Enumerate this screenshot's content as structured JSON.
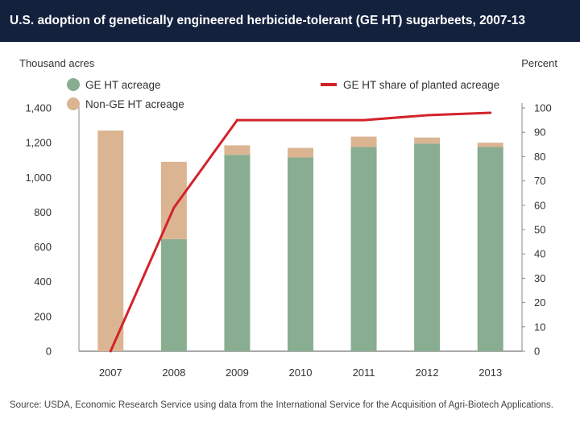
{
  "header": {
    "title": "U.S. adoption of genetically engineered herbicide-tolerant (GE HT) sugarbeets, 2007-13"
  },
  "footer": {
    "source": "Source: USDA, Economic Research Service using data from the International Service for the Acquisition of Agri-Biotech Applications."
  },
  "chart_data": {
    "type": "bar",
    "title": "U.S. adoption of genetically engineered herbicide-tolerant (GE HT) sugarbeets, 2007-13",
    "ylabel": "Thousand acres",
    "y2label": "Percent",
    "categories": [
      "2007",
      "2008",
      "2009",
      "2010",
      "2011",
      "2012",
      "2013"
    ],
    "series": [
      {
        "name": "GE HT acreage",
        "kind": "bar",
        "stacked": true,
        "axis": "left",
        "color": "#88ad91",
        "values": [
          0,
          645,
          1130,
          1115,
          1175,
          1195,
          1175
        ]
      },
      {
        "name": "Non-GE HT acreage",
        "kind": "bar",
        "stacked": true,
        "axis": "left",
        "color": "#dbb592",
        "values": [
          1270,
          445,
          55,
          55,
          60,
          35,
          25
        ]
      },
      {
        "name": "GE HT share of planted acreage",
        "kind": "line",
        "axis": "right",
        "color": "#d2232a",
        "values": [
          0,
          59,
          95,
          95,
          95,
          97,
          98
        ]
      }
    ],
    "ylim": [
      0,
      1400
    ],
    "yticks": [
      "0",
      "200",
      "400",
      "600",
      "800",
      "1,000",
      "1,200",
      "1,400"
    ],
    "y2lim": [
      0,
      100
    ],
    "y2ticks": [
      "0",
      "10",
      "20",
      "30",
      "40",
      "50",
      "60",
      "70",
      "80",
      "90",
      "100"
    ],
    "grid": false,
    "legend": "top"
  }
}
